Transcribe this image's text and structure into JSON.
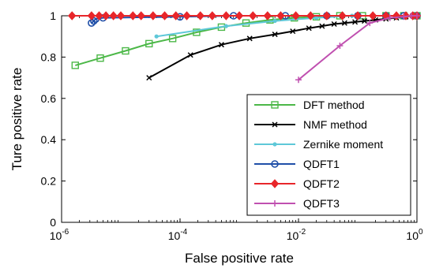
{
  "chart_data": {
    "type": "line",
    "xlabel": "False positive rate",
    "ylabel": "Ture positive rate",
    "xscale": "log",
    "xlim": [
      1e-06,
      1
    ],
    "ylim": [
      0,
      1
    ],
    "grid": false,
    "legend_position": "bottom-right",
    "x_ticks": [
      {
        "value": 1e-06,
        "base": "10",
        "exp": "-6"
      },
      {
        "value": 0.0001,
        "base": "10",
        "exp": "-4"
      },
      {
        "value": 0.01,
        "base": "10",
        "exp": "-2"
      },
      {
        "value": 1,
        "base": "10",
        "exp": "0"
      }
    ],
    "y_ticks": [
      "0",
      "0.2",
      "0.4",
      "0.6",
      "0.8",
      "1"
    ],
    "series": [
      {
        "name": "DFT method",
        "color": "#4cb848",
        "marker": "square",
        "x": [
          1.7e-06,
          4.5e-06,
          1.2e-05,
          3e-05,
          7.5e-05,
          0.00019,
          0.0005,
          0.0013,
          0.0033,
          0.0085,
          0.02,
          0.05,
          0.12,
          0.3,
          0.6,
          1
        ],
        "y": [
          0.76,
          0.795,
          0.83,
          0.865,
          0.89,
          0.92,
          0.945,
          0.965,
          0.98,
          0.99,
          0.995,
          1,
          1,
          1,
          1,
          1
        ]
      },
      {
        "name": "NMF method",
        "color": "#000000",
        "marker": "x",
        "x": [
          3e-05,
          0.00015,
          0.0005,
          0.0015,
          0.004,
          0.008,
          0.015,
          0.025,
          0.04,
          0.06,
          0.09,
          0.13,
          0.2,
          0.3,
          0.45,
          0.65,
          0.85,
          1
        ],
        "y": [
          0.7,
          0.81,
          0.86,
          0.89,
          0.91,
          0.925,
          0.94,
          0.95,
          0.96,
          0.965,
          0.97,
          0.975,
          0.98,
          0.985,
          0.99,
          0.995,
          1,
          1
        ]
      },
      {
        "name": "Zernike moment",
        "color": "#5ec8d8",
        "marker": "dot",
        "x": [
          4e-05,
          0.0006,
          0.004,
          0.02,
          0.08,
          0.3,
          1
        ],
        "y": [
          0.9,
          0.95,
          0.975,
          0.99,
          1,
          1,
          1
        ]
      },
      {
        "name": "QDFT1",
        "color": "#1f4fa8",
        "marker": "circle",
        "x": [
          3.2e-06,
          3.5e-06,
          3.8e-06,
          5e-06,
          0.0001,
          0.0008,
          0.006,
          0.03,
          0.1,
          0.3,
          0.6,
          1
        ],
        "y": [
          0.965,
          0.975,
          0.985,
          0.99,
          0.995,
          1,
          1,
          1,
          1,
          1,
          1,
          1
        ]
      },
      {
        "name": "QDFT2",
        "color": "#e8262a",
        "marker": "diamond",
        "x": [
          1.5e-06,
          3.2e-06,
          4.3e-06,
          5.6e-06,
          7.5e-06,
          1e-05,
          1.6e-05,
          2.2e-05,
          3.5e-05,
          5.5e-05,
          8.5e-05,
          0.00013,
          0.00022,
          0.00035,
          0.0006,
          0.001,
          0.0017,
          0.003,
          0.005,
          0.009,
          0.016,
          0.03,
          0.055,
          0.1,
          0.18,
          0.3,
          0.45,
          0.65,
          0.85,
          1
        ],
        "y": [
          1,
          1,
          1,
          1,
          1,
          1,
          1,
          1,
          1,
          1,
          1,
          1,
          1,
          1,
          1,
          1,
          1,
          1,
          1,
          1,
          1,
          1,
          1,
          1,
          1,
          1,
          1,
          1,
          1,
          1
        ]
      },
      {
        "name": "QDFT3",
        "color": "#c050b0",
        "marker": "plus",
        "x": [
          0.01,
          0.05,
          0.16,
          0.35,
          0.6,
          0.8,
          1
        ],
        "y": [
          0.69,
          0.855,
          0.965,
          0.99,
          0.995,
          1,
          1
        ]
      }
    ]
  }
}
